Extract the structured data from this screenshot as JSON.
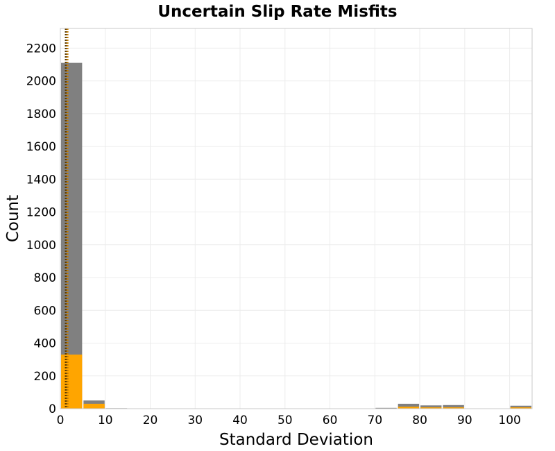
{
  "chart_data": {
    "type": "bar",
    "title": "Uncertain Slip Rate Misfits",
    "xlabel": "Standard Deviation",
    "ylabel": "Count",
    "xlim": [
      0,
      105
    ],
    "ylim": [
      0,
      2320
    ],
    "x_ticks": [
      0,
      10,
      20,
      30,
      40,
      50,
      60,
      70,
      80,
      90,
      100
    ],
    "y_ticks": [
      0,
      200,
      400,
      600,
      800,
      1000,
      1200,
      1400,
      1600,
      1800,
      2000,
      2200
    ],
    "bin_width": 5,
    "bins": [
      {
        "x0": 0,
        "x1": 5,
        "total": 2110,
        "highlighted": 330
      },
      {
        "x0": 5,
        "x1": 10,
        "total": 50,
        "highlighted": 30
      },
      {
        "x0": 10,
        "x1": 15,
        "total": 3,
        "highlighted": 1
      },
      {
        "x0": 15,
        "x1": 20,
        "total": 2,
        "highlighted": 1
      },
      {
        "x0": 20,
        "x1": 25,
        "total": 2,
        "highlighted": 0
      },
      {
        "x0": 25,
        "x1": 30,
        "total": 2,
        "highlighted": 0
      },
      {
        "x0": 30,
        "x1": 35,
        "total": 2,
        "highlighted": 0
      },
      {
        "x0": 35,
        "x1": 40,
        "total": 2,
        "highlighted": 0
      },
      {
        "x0": 40,
        "x1": 45,
        "total": 2,
        "highlighted": 0
      },
      {
        "x0": 45,
        "x1": 50,
        "total": 2,
        "highlighted": 0
      },
      {
        "x0": 50,
        "x1": 55,
        "total": 2,
        "highlighted": 0
      },
      {
        "x0": 55,
        "x1": 60,
        "total": 2,
        "highlighted": 0
      },
      {
        "x0": 60,
        "x1": 65,
        "total": 2,
        "highlighted": 0
      },
      {
        "x0": 65,
        "x1": 70,
        "total": 2,
        "highlighted": 0
      },
      {
        "x0": 70,
        "x1": 75,
        "total": 5,
        "highlighted": 2
      },
      {
        "x0": 75,
        "x1": 80,
        "total": 30,
        "highlighted": 12
      },
      {
        "x0": 80,
        "x1": 85,
        "total": 20,
        "highlighted": 8
      },
      {
        "x0": 85,
        "x1": 90,
        "total": 22,
        "highlighted": 8
      },
      {
        "x0": 90,
        "x1": 95,
        "total": 2,
        "highlighted": 0
      },
      {
        "x0": 95,
        "x1": 100,
        "total": 2,
        "highlighted": 0
      },
      {
        "x0": 100,
        "x1": 105,
        "total": 18,
        "highlighted": 8
      }
    ],
    "reference_lines": [
      {
        "x": 1.2,
        "style": "dotted",
        "color": "#5a3a00"
      },
      {
        "x": 1.6,
        "style": "dotted",
        "color": "#c27a00"
      }
    ],
    "colors": {
      "total": "#808080",
      "highlighted": "#ffa500"
    },
    "grid": true
  }
}
